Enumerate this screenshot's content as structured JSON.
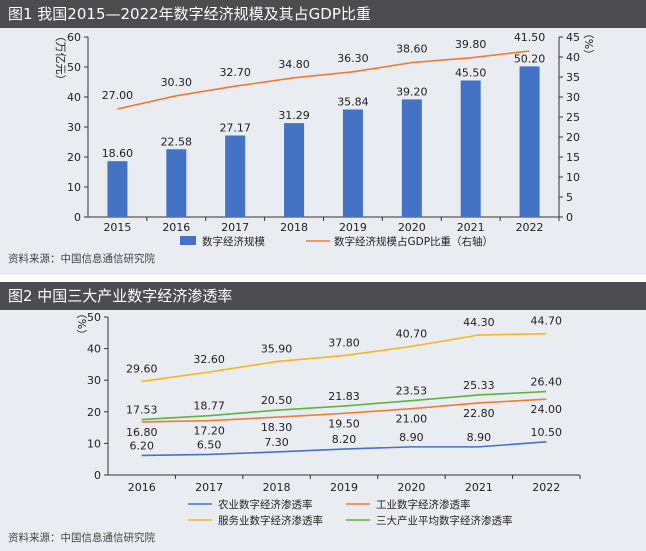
{
  "figure1": {
    "title": "图1 我国2015—2022年数字经济规模及其占GDP比重",
    "source": "资料来源：中国信息通信研究院",
    "left_axis_label": "（万亿元）",
    "right_axis_label": "（%）",
    "legend": [
      "数字经济规模",
      "数字经济规模占GDP比重（右轴）"
    ]
  },
  "figure2": {
    "title": "图2 中国三大产业数字经济渗透率",
    "source": "资料来源：中国信息通信研究院",
    "y_axis_label": "（%）",
    "legend": [
      "农业数字经济渗透率",
      "工业数字经济渗透率",
      "服务业数字经济渗透率",
      "三大产业平均数字经济渗透率"
    ]
  },
  "chart_data": [
    {
      "type": "bar",
      "categories": [
        "2015",
        "2016",
        "2017",
        "2018",
        "2019",
        "2020",
        "2021",
        "2022"
      ],
      "series": [
        {
          "name": "数字经济规模",
          "type": "bar",
          "axis": "left",
          "values": [
            18.6,
            22.58,
            27.17,
            31.29,
            35.84,
            39.2,
            45.5,
            50.2
          ],
          "labels": [
            "18.60",
            "22.58",
            "27.17",
            "31.29",
            "35.84",
            "39.20",
            "45.50",
            "50.20"
          ],
          "color": "#4472c4"
        },
        {
          "name": "数字经济规模占GDP比重（右轴）",
          "type": "line",
          "axis": "right",
          "values": [
            27.0,
            30.3,
            32.7,
            34.8,
            36.3,
            38.6,
            39.8,
            41.5
          ],
          "labels": [
            "27.00",
            "30.30",
            "32.70",
            "34.80",
            "36.30",
            "38.60",
            "39.80",
            "41.50"
          ],
          "color": "#ed7d31"
        }
      ],
      "ylim": [
        0,
        60
      ],
      "yticks": [
        "0",
        "10",
        "20",
        "30",
        "40",
        "50",
        "60"
      ],
      "y2lim": [
        0,
        45
      ],
      "y2ticks": [
        "0",
        "5",
        "10",
        "15",
        "20",
        "25",
        "30",
        "35",
        "40",
        "45"
      ],
      "legend_position": "bottom"
    },
    {
      "type": "line",
      "categories": [
        "2016",
        "2017",
        "2018",
        "2019",
        "2020",
        "2021",
        "2022"
      ],
      "series": [
        {
          "name": "农业数字经济渗透率",
          "values": [
            6.2,
            6.5,
            7.3,
            8.2,
            8.9,
            8.9,
            10.5
          ],
          "labels": [
            "6.20",
            "6.50",
            "7.30",
            "8.20",
            "8.90",
            "8.90",
            "10.50"
          ],
          "color": "#4472c4"
        },
        {
          "name": "工业数字经济渗透率",
          "values": [
            16.8,
            17.2,
            18.3,
            19.5,
            21.0,
            22.8,
            24.0
          ],
          "labels": [
            "16.80",
            "17.20",
            "18.30",
            "19.50",
            "21.00",
            "22.80",
            "24.00"
          ],
          "color": "#ed7d31"
        },
        {
          "name": "服务业数字经济渗透率",
          "values": [
            29.6,
            32.6,
            35.9,
            37.8,
            40.7,
            44.3,
            44.7
          ],
          "labels": [
            "29.60",
            "32.60",
            "35.90",
            "37.80",
            "40.70",
            "44.30",
            "44.70"
          ],
          "color": "#f2b81d"
        },
        {
          "name": "三大产业平均数字经济渗透率",
          "values": [
            17.53,
            18.77,
            20.5,
            21.83,
            23.53,
            25.33,
            26.4
          ],
          "labels": [
            "17.53",
            "18.77",
            "20.50",
            "21.83",
            "23.53",
            "25.33",
            "26.40"
          ],
          "color": "#5cb342"
        }
      ],
      "ylim": [
        0,
        50
      ],
      "yticks": [
        "0",
        "10",
        "20",
        "30",
        "40",
        "50"
      ],
      "legend_position": "bottom"
    }
  ]
}
